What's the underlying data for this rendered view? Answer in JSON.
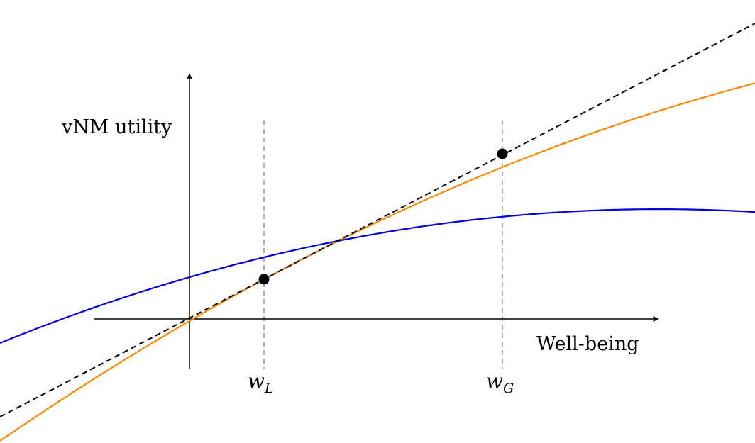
{
  "labels": {
    "y_axis": "vNM utility",
    "x_axis": "Well-being",
    "w_low": "w",
    "w_low_sub": "L",
    "w_high": "w",
    "w_high_sub": "G"
  },
  "colors": {
    "convex_curve": "#0000dd",
    "concave_curve": "#ff8800",
    "tangent_line": "#000000",
    "guide_line": "#888888",
    "axes": "#000000"
  }
}
